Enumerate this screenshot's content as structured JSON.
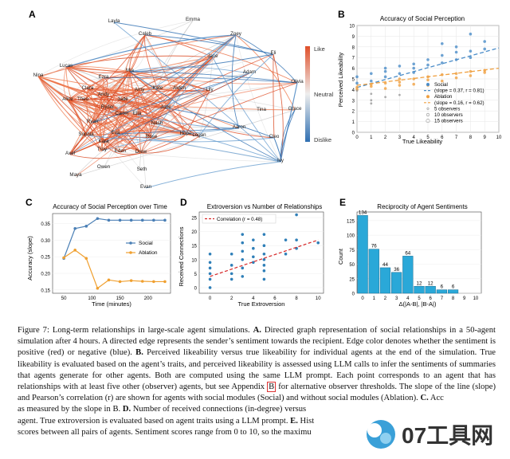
{
  "panels": {
    "a": {
      "letter": "A",
      "nodes": [
        "Layla",
        "Emma",
        "Caleb",
        "Zoey",
        "Eli",
        "Lucas",
        "Jace",
        "Nina",
        "Mia",
        "Adam",
        "Ezra",
        "Olivia",
        "Clara",
        "Andy",
        "Amy",
        "Kate",
        "Aiden",
        "Lily",
        "Alice",
        "Theo",
        "Jade",
        "Grace",
        "Ryder",
        "June",
        "Carter",
        "Ella",
        "Nash",
        "Tina",
        "Ryan",
        "Sophia",
        "Eva",
        "Rose",
        "Hope",
        "Logan",
        "Aaron",
        "Cleo",
        "Kara",
        "Troy",
        "Axel",
        "Eden",
        "Drew",
        "Owen",
        "Ivy",
        "Seth",
        "Maya",
        "Evan"
      ],
      "legend": {
        "top": "Like",
        "mid": "Neutral",
        "bottom": "Dislike"
      }
    },
    "b": {
      "letter": "B",
      "title": "Accuracy of Social Perception",
      "xlabel": "True Likeability",
      "ylabel": "Perceived Likeability",
      "legend": [
        "Social",
        "(slope = 0.37, r = 0.81)",
        "Ablation",
        "(slope = 0.16, r = 0.62)",
        "5 observers",
        "10 observers",
        "15 observers"
      ]
    },
    "c": {
      "letter": "C",
      "title": "Accuracy of Social Perception over Time",
      "xlabel": "Time (minutes)",
      "ylabel": "Accuracy (slope)",
      "legend": [
        "Social",
        "Ablation"
      ]
    },
    "d": {
      "letter": "D",
      "title": "Extroversion vs Number of Relationships",
      "xlabel": "True Extroversion",
      "ylabel": "Received Connections",
      "legend": "Correlation (r = 0.48)"
    },
    "e": {
      "letter": "E",
      "title": "Reciprocity of Agent Sentiments",
      "xlabel": "Δ(|A-B|, |B-A|)",
      "ylabel": "Count"
    }
  },
  "chart_data": [
    {
      "id": "B",
      "type": "scatter",
      "title": "Accuracy of Social Perception",
      "xlabel": "True Likeability",
      "ylabel": "Perceived Likeability",
      "xlim": [
        0,
        10
      ],
      "ylim": [
        0,
        10
      ],
      "xticks": [
        0,
        1,
        2,
        3,
        4,
        5,
        6,
        7,
        8,
        9,
        10
      ],
      "yticks": [
        0,
        1,
        2,
        3,
        4,
        5,
        6,
        7,
        8,
        9,
        10
      ],
      "series": [
        {
          "name": "Social",
          "color": "#4a8cc8",
          "slope": 0.37,
          "intercept": 4.2,
          "points": [
            [
              0,
              4.6
            ],
            [
              0,
              5.2
            ],
            [
              1,
              5.5
            ],
            [
              1,
              4.8
            ],
            [
              2,
              6.0
            ],
            [
              2,
              5.2
            ],
            [
              3,
              6.2
            ],
            [
              3,
              5.5
            ],
            [
              4,
              6.0
            ],
            [
              4,
              5.6
            ],
            [
              5,
              6.3
            ],
            [
              5,
              6.8
            ],
            [
              6,
              7.2
            ],
            [
              6,
              6.5
            ],
            [
              7,
              7.5
            ],
            [
              7,
              8.0
            ],
            [
              8,
              7.6
            ],
            [
              8,
              7.0
            ],
            [
              9,
              7.8
            ],
            [
              9,
              8.5
            ],
            [
              8,
              9.2
            ],
            [
              6,
              8.3
            ],
            [
              7,
              6.8
            ],
            [
              2,
              5.7
            ],
            [
              4,
              6.4
            ]
          ]
        },
        {
          "name": "Ablation",
          "color": "#f0a040",
          "slope": 0.16,
          "intercept": 4.4,
          "points": [
            [
              0,
              4.2
            ],
            [
              0,
              4.0
            ],
            [
              1,
              4.5
            ],
            [
              1,
              4.3
            ],
            [
              2,
              4.6
            ],
            [
              2,
              4.1
            ],
            [
              3,
              4.7
            ],
            [
              3,
              4.4
            ],
            [
              4,
              5.0
            ],
            [
              4,
              4.5
            ],
            [
              5,
              4.9
            ],
            [
              5,
              5.2
            ],
            [
              6,
              5.4
            ],
            [
              6,
              4.8
            ],
            [
              7,
              5.5
            ],
            [
              7,
              5.1
            ],
            [
              8,
              5.7
            ],
            [
              8,
              5.3
            ],
            [
              9,
              5.8
            ],
            [
              9,
              5.6
            ],
            [
              5,
              4.4
            ],
            [
              3,
              5.0
            ]
          ]
        },
        {
          "name": "Observers",
          "color": "#999999",
          "points": [
            [
              1,
              3.6
            ],
            [
              1,
              3.0
            ],
            [
              2,
              3.3
            ],
            [
              3,
              3.5
            ],
            [
              0,
              3.9
            ],
            [
              1,
              2.7
            ]
          ]
        }
      ]
    },
    {
      "id": "C",
      "type": "line",
      "title": "Accuracy of Social Perception over Time",
      "xlabel": "Time (minutes)",
      "ylabel": "Accuracy (slope)",
      "xlim": [
        30,
        240
      ],
      "ylim": [
        0.14,
        0.38
      ],
      "xticks": [
        50,
        100,
        150,
        200
      ],
      "yticks": [
        0.15,
        0.2,
        0.25,
        0.3,
        0.35
      ],
      "series": [
        {
          "name": "Social",
          "color": "#4a7fb5",
          "x": [
            50,
            70,
            90,
            110,
            130,
            150,
            170,
            190,
            210,
            230
          ],
          "values": [
            0.245,
            0.335,
            0.342,
            0.365,
            0.36,
            0.36,
            0.36,
            0.36,
            0.36,
            0.36
          ]
        },
        {
          "name": "Ablation",
          "color": "#f0a030",
          "x": [
            50,
            70,
            90,
            110,
            130,
            150,
            170,
            190,
            210,
            230
          ],
          "values": [
            0.247,
            0.27,
            0.245,
            0.155,
            0.18,
            0.175,
            0.178,
            0.176,
            0.175,
            0.175
          ]
        }
      ]
    },
    {
      "id": "D",
      "type": "scatter",
      "title": "Extroversion vs Number of Relationships",
      "xlabel": "True Extroversion",
      "ylabel": "Received Connections",
      "xlim": [
        -1,
        10.5
      ],
      "ylim": [
        -2,
        27
      ],
      "xticks": [
        0,
        2,
        4,
        6,
        8,
        10
      ],
      "yticks": [
        0,
        5,
        10,
        15,
        20,
        25
      ],
      "trend": {
        "label": "Correlation (r = 0.48)",
        "x": [
          0,
          10
        ],
        "y": [
          4,
          17
        ]
      },
      "points": [
        [
          0,
          0
        ],
        [
          0,
          3
        ],
        [
          0,
          5
        ],
        [
          0,
          7
        ],
        [
          0,
          9
        ],
        [
          0,
          12
        ],
        [
          2,
          5
        ],
        [
          2,
          8
        ],
        [
          2,
          12
        ],
        [
          2,
          3
        ],
        [
          3,
          4
        ],
        [
          3,
          7
        ],
        [
          3,
          10
        ],
        [
          3,
          13
        ],
        [
          3,
          16
        ],
        [
          3,
          19
        ],
        [
          4,
          9
        ],
        [
          4,
          11
        ],
        [
          4,
          14
        ],
        [
          4,
          17
        ],
        [
          5,
          3
        ],
        [
          5,
          6
        ],
        [
          5,
          8
        ],
        [
          5,
          10
        ],
        [
          5,
          12
        ],
        [
          5,
          15
        ],
        [
          5,
          19
        ],
        [
          7,
          12
        ],
        [
          7,
          17
        ],
        [
          8,
          14
        ],
        [
          8,
          17
        ],
        [
          8,
          26
        ],
        [
          10,
          16
        ]
      ]
    },
    {
      "id": "E",
      "type": "bar",
      "title": "Reciprocity of Agent Sentiments",
      "xlabel": "Δ(|A-B|, |B-A|)",
      "ylabel": "Count",
      "ylim": [
        0,
        140
      ],
      "categories": [
        "0",
        "1",
        "2",
        "3",
        "4",
        "5",
        "6",
        "7",
        "8",
        "9",
        "10"
      ],
      "values": [
        134,
        76,
        44,
        36,
        64,
        12,
        12,
        6,
        6,
        0,
        0
      ],
      "yticks": [
        0,
        25,
        50,
        75,
        100,
        125
      ],
      "labels": [
        "134",
        "76",
        "44",
        "36",
        "64",
        "12",
        "12",
        "6",
        "6",
        "",
        ""
      ]
    }
  ],
  "caption": {
    "figure": "Figure 7: ",
    "lead": "Long-term relationships in large-scale agent simulations. ",
    "a_label": "A.",
    "a_text": " Directed graph representation of social relationships in a 50-agent simulation after 4 hours. A directed edge represents the sender’s sentiment towards the recipient. Edge color denotes whether the sentiment is positive (red) or negative (blue). ",
    "b_label": "B.",
    "b_text": " Perceived likeability versus true likeability for individual agents at the end of the simulation. True likeability is evaluated based on the agent’s traits, and perceived likeability is assessed using LLM calls to infer the sentiments of summaries that agents generate for other agents. Both are computed using the same LLM prompt. Each point corresponds to an agent that has relationships with at least five other (observer) agents, but see Appendix ",
    "appendix": "B",
    "b_text2": " for alternative observer thresholds. The slope of the line (slope) and Pearson’s correlation (r) are shown for agents with social modules (Social) and without social modules (Ablation). ",
    "c_label": "C.",
    "c_text": " Acc",
    "line_c2": "as measured by the slope in B. ",
    "d_label": "D.",
    "d_text": " Number of received connections (in-degree) versus",
    "line_e1": "agent. True extroversion is evaluated based on agent traits using a LLM prompt. ",
    "e_label": "E.",
    "e_text": " Hist",
    "line_e2": "scores between all pairs of agents. Sentiment scores range from 0 to 10, so the maximu"
  },
  "watermark": {
    "text": "07工具网"
  }
}
